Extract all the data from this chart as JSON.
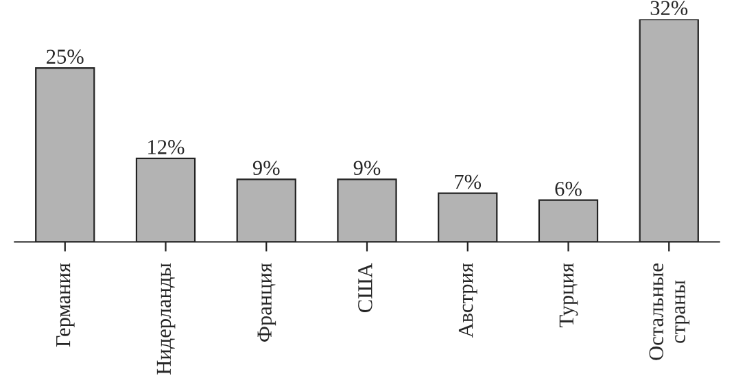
{
  "chart_data": {
    "type": "bar",
    "categories": [
      "Германия",
      "Нидерланды",
      "Франция",
      "США",
      "Австрия",
      "Турция",
      "Остальные\nстраны"
    ],
    "values": [
      25,
      12,
      9,
      9,
      7,
      6,
      32
    ],
    "value_labels": [
      "25%",
      "12%",
      "9%",
      "9%",
      "7%",
      "6%",
      "32%"
    ],
    "color": "#b3b3b3",
    "grid": false,
    "legend": false
  }
}
